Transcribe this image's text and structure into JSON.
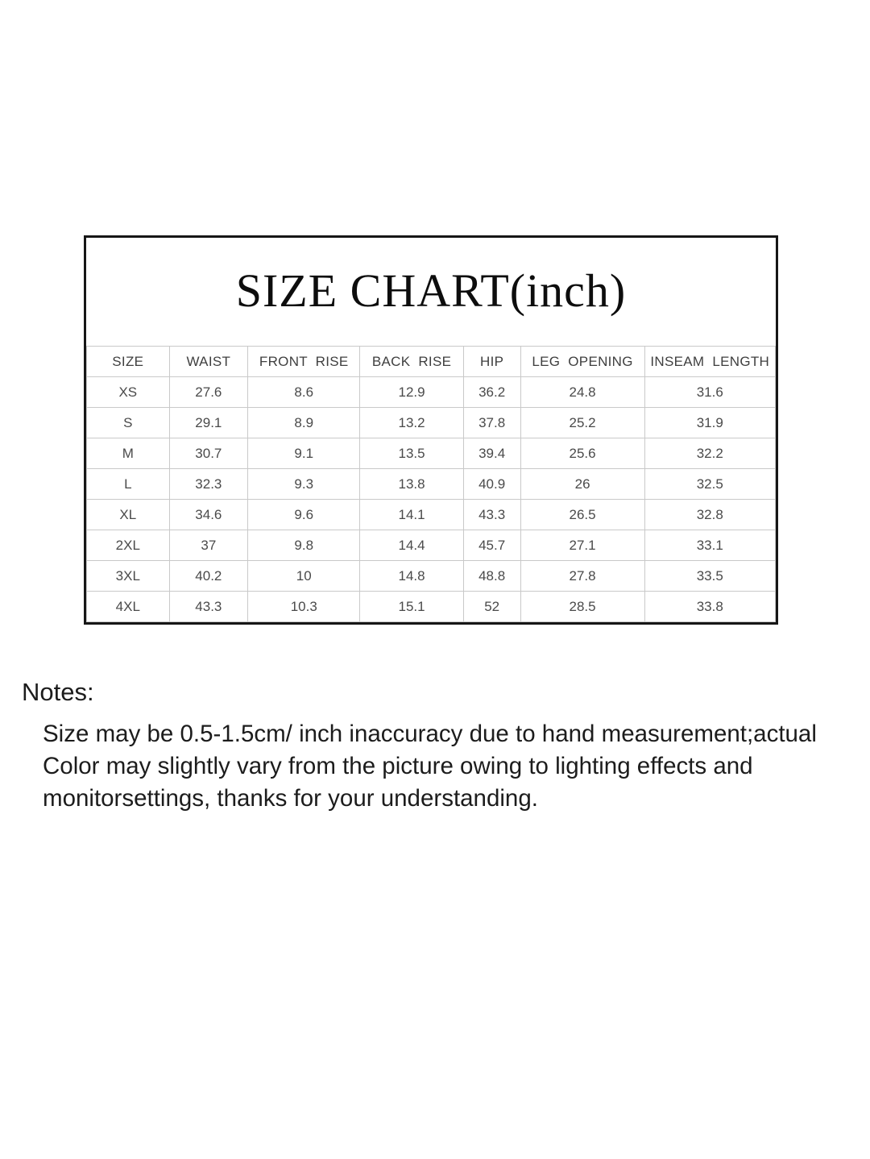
{
  "size_chart": {
    "title": "SIZE CHART(inch)",
    "columns": [
      "SIZE",
      "WAIST",
      "FRONT RISE",
      "BACK RISE",
      "HIP",
      "LEG OPENING",
      "INSEAM LENGTH"
    ],
    "rows": [
      [
        "XS",
        "27.6",
        "8.6",
        "12.9",
        "36.2",
        "24.8",
        "31.6"
      ],
      [
        "S",
        "29.1",
        "8.9",
        "13.2",
        "37.8",
        "25.2",
        "31.9"
      ],
      [
        "M",
        "30.7",
        "9.1",
        "13.5",
        "39.4",
        "25.6",
        "32.2"
      ],
      [
        "L",
        "32.3",
        "9.3",
        "13.8",
        "40.9",
        "26",
        "32.5"
      ],
      [
        "XL",
        "34.6",
        "9.6",
        "14.1",
        "43.3",
        "26.5",
        "32.8"
      ],
      [
        "2XL",
        "37",
        "9.8",
        "14.4",
        "45.7",
        "27.1",
        "33.1"
      ],
      [
        "3XL",
        "40.2",
        "10",
        "14.8",
        "48.8",
        "27.8",
        "33.5"
      ],
      [
        "4XL",
        "43.3",
        "10.3",
        "15.1",
        "52",
        "28.5",
        "33.8"
      ]
    ]
  },
  "notes": {
    "heading": "Notes:",
    "lines": [
      "Size may be 0.5-1.5cm/ inch inaccuracy due to hand measurement;actual",
      "Color may slightly vary from the picture owing to lighting effects and",
      "monitorsettings, thanks for your understanding."
    ]
  },
  "colors": {
    "box_border": "#161616",
    "grid_line": "#c9c9c9",
    "table_text": "#4a4a4a",
    "body_text": "#1c1c1c"
  }
}
